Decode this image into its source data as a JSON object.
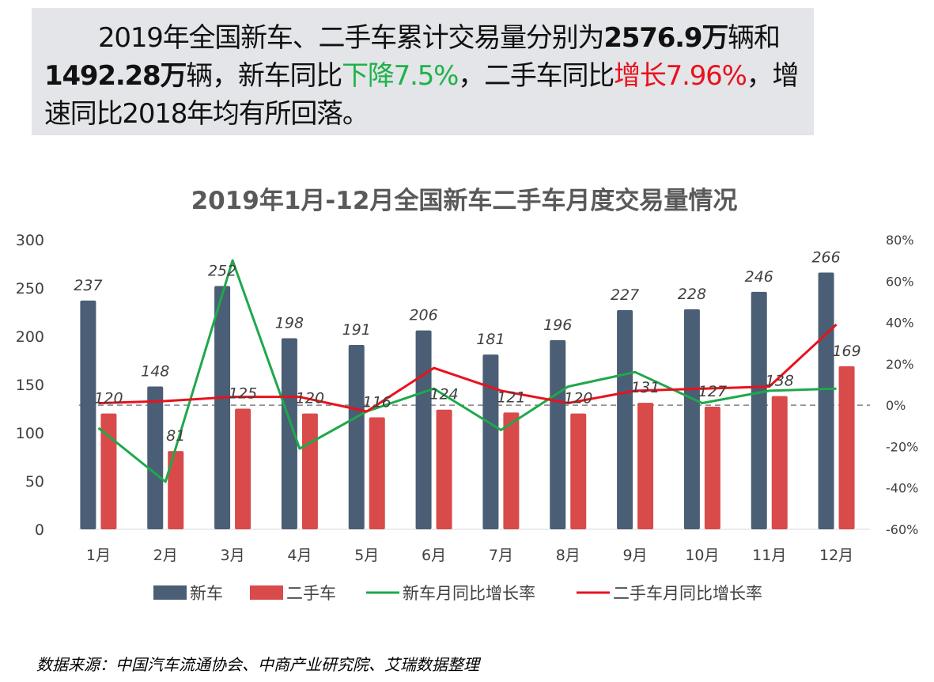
{
  "summary": {
    "part1": "2019年全国新车、二手车累计交易量分别为",
    "new_total": "2576.9万",
    "part2": "辆和",
    "used_total": "1492.28万",
    "part3": "辆，新车同比",
    "new_change": "下降7.5%",
    "part4": "，二手车同比",
    "used_change": "增长7.96%",
    "part5": "，增速同比2018年均有所回落。"
  },
  "source": "数据来源：中国汽车流通协会、中商产业研究院、艾瑞数据整理",
  "colors": {
    "new_bar": "#4a5e75",
    "used_bar": "#d94a4a",
    "new_line": "#1fa84a",
    "used_line": "#e8121d"
  },
  "chart_data": {
    "type": "bar",
    "title": "2019年1月-12月全国新车二手车月度交易量情况",
    "categories": [
      "1月",
      "2月",
      "3月",
      "4月",
      "5月",
      "6月",
      "7月",
      "8月",
      "9月",
      "10月",
      "11月",
      "12月"
    ],
    "series": [
      {
        "name": "新车",
        "type": "bar",
        "axis": "left",
        "values": [
          237,
          148,
          252,
          198,
          191,
          206,
          181,
          196,
          227,
          228,
          246,
          266
        ]
      },
      {
        "name": "二手车",
        "type": "bar",
        "axis": "left",
        "values": [
          120,
          81,
          125,
          120,
          116,
          124,
          121,
          120,
          131,
          127,
          138,
          169
        ]
      },
      {
        "name": "新车月同比增长率",
        "type": "line",
        "axis": "right",
        "values": [
          -11,
          -37,
          70,
          -21,
          -3,
          8,
          -12,
          9,
          16,
          1,
          7,
          8
        ]
      },
      {
        "name": "二手车月同比增长率",
        "type": "line",
        "axis": "right",
        "values": [
          1,
          2,
          4,
          4,
          -3,
          18,
          7,
          1,
          7,
          8,
          9,
          39
        ]
      }
    ],
    "left_axis": {
      "ylim": [
        0,
        300
      ],
      "ticks": [
        "0",
        "50",
        "100",
        "150",
        "200",
        "250",
        "300"
      ]
    },
    "right_axis": {
      "ylim": [
        -60,
        80
      ],
      "ticks": [
        "-60%",
        "-40%",
        "-20%",
        "0%",
        "20%",
        "40%",
        "60%",
        "80%"
      ]
    },
    "zero_reference_line": "dashed",
    "legend_position": "bottom"
  }
}
